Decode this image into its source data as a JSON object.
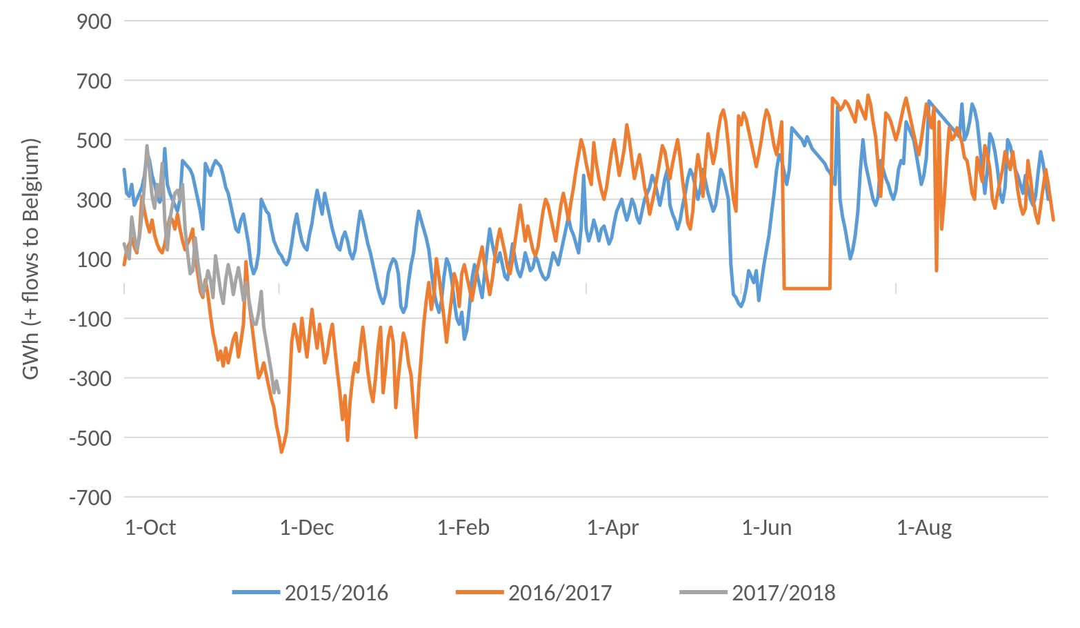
{
  "chart": {
    "type": "line",
    "background_color": "#ffffff",
    "grid_color": "#d9d9d9",
    "axis_color": "#d9d9d9",
    "text_color": "#595959",
    "label_fontsize": 34,
    "ytitle_fontsize": 34,
    "legend_fontsize": 34,
    "line_width": 5,
    "ylabel": "GWh (+ flows to Belgium)",
    "ylim": [
      -700,
      900
    ],
    "ytick_step": 200,
    "yticks": [
      -700,
      -500,
      -300,
      -100,
      100,
      300,
      500,
      700,
      900
    ],
    "xticks": [
      {
        "x": 0,
        "label": "1-Oct"
      },
      {
        "x": 61,
        "label": "1-Dec"
      },
      {
        "x": 123,
        "label": "1-Feb"
      },
      {
        "x": 182,
        "label": "1-Apr"
      },
      {
        "x": 243,
        "label": "1-Jun"
      },
      {
        "x": 304,
        "label": "1-Aug"
      }
    ],
    "x_count": 365,
    "legend": {
      "items": [
        {
          "label": "2015/2016",
          "color": "#5b9bd5"
        },
        {
          "label": "2016/2017",
          "color": "#ed7d31"
        },
        {
          "label": "2017/2018",
          "color": "#a5a5a5"
        }
      ]
    },
    "series": [
      {
        "name": "2015/2016",
        "color": "#5b9bd5",
        "values": [
          400,
          320,
          310,
          350,
          280,
          300,
          320,
          340,
          380,
          460,
          430,
          380,
          350,
          310,
          290,
          310,
          470,
          350,
          320,
          300,
          280,
          260,
          300,
          430,
          420,
          410,
          400,
          380,
          340,
          300,
          260,
          200,
          420,
          400,
          380,
          410,
          430,
          420,
          410,
          380,
          340,
          320,
          280,
          240,
          200,
          190,
          230,
          250,
          200,
          150,
          80,
          50,
          70,
          120,
          300,
          280,
          260,
          250,
          200,
          160,
          140,
          120,
          110,
          90,
          80,
          100,
          150,
          210,
          250,
          200,
          160,
          140,
          130,
          180,
          220,
          280,
          330,
          290,
          250,
          320,
          280,
          240,
          200,
          170,
          140,
          130,
          170,
          190,
          160,
          120,
          100,
          130,
          200,
          260,
          230,
          190,
          150,
          120,
          80,
          40,
          0,
          -30,
          -50,
          -20,
          50,
          80,
          100,
          90,
          50,
          -60,
          -80,
          -60,
          20,
          80,
          120,
          200,
          260,
          230,
          200,
          170,
          130,
          60,
          -10,
          -50,
          -80,
          -40,
          40,
          100,
          80,
          30,
          -40,
          -100,
          -120,
          -80,
          -170,
          -140,
          -60,
          30,
          80,
          50,
          10,
          -30,
          50,
          130,
          200,
          150,
          110,
          90,
          120,
          80,
          40,
          30,
          90,
          150,
          100,
          60,
          40,
          70,
          120,
          90,
          60,
          70,
          110,
          90,
          60,
          40,
          30,
          40,
          80,
          120,
          100,
          80,
          120,
          160,
          200,
          240,
          200,
          180,
          150,
          120,
          200,
          380,
          200,
          160,
          190,
          230,
          200,
          160,
          200,
          210,
          180,
          150,
          170,
          220,
          260,
          280,
          300,
          260,
          230,
          260,
          300,
          280,
          240,
          220,
          260,
          300,
          320,
          340,
          380,
          360,
          320,
          280,
          320,
          370,
          400,
          280,
          250,
          230,
          200,
          230,
          280,
          320,
          370,
          400,
          380,
          340,
          300,
          340,
          400,
          360,
          320,
          290,
          260,
          280,
          340,
          400,
          380,
          340,
          300,
          80,
          -20,
          -30,
          -50,
          -60,
          -40,
          0,
          60,
          40,
          20,
          60,
          -40,
          20,
          80,
          130,
          180,
          250,
          320,
          400,
          450,
          430,
          390,
          350,
          400,
          540,
          530,
          520,
          510,
          500,
          480,
          510,
          490,
          470,
          460,
          450,
          440,
          430,
          420,
          400,
          390,
          370,
          350,
          610,
          300,
          240,
          200,
          150,
          100,
          130,
          180,
          260,
          400,
          500,
          420,
          380,
          340,
          300,
          280,
          310,
          430,
          400,
          370,
          350,
          320,
          300,
          330,
          400,
          430,
          420,
          560,
          540,
          520,
          500,
          450,
          400,
          350,
          380,
          440,
          630,
          620,
          610,
          600,
          590,
          580,
          570,
          560,
          550,
          540,
          530,
          520,
          510,
          620,
          500,
          520,
          560,
          620,
          600,
          560,
          480,
          400,
          320,
          400,
          520,
          500,
          460,
          400,
          320,
          290,
          340,
          500,
          480,
          440,
          400,
          380,
          350,
          320,
          380,
          340,
          300,
          280,
          310,
          390,
          460,
          420,
          360,
          300
        ]
      },
      {
        "name": "2016/2017",
        "color": "#ed7d31",
        "values": [
          80,
          130,
          150,
          170,
          140,
          120,
          180,
          310,
          260,
          220,
          190,
          230,
          180,
          150,
          130,
          120,
          150,
          200,
          240,
          230,
          200,
          250,
          200,
          160,
          130,
          150,
          170,
          200,
          100,
          50,
          -10,
          -30,
          30,
          -20,
          -90,
          -150,
          -190,
          -240,
          -210,
          -260,
          -200,
          -250,
          -210,
          -170,
          -150,
          -230,
          -180,
          -120,
          90,
          -30,
          -100,
          -170,
          -240,
          -300,
          -280,
          -250,
          -290,
          -330,
          -370,
          -400,
          -460,
          -500,
          -550,
          -520,
          -480,
          -350,
          -180,
          -120,
          -160,
          -210,
          -100,
          -170,
          -230,
          -150,
          -70,
          -140,
          -200,
          -120,
          -180,
          -250,
          -220,
          -160,
          -120,
          -200,
          -280,
          -350,
          -440,
          -360,
          -510,
          -380,
          -300,
          -250,
          -280,
          -200,
          -130,
          -200,
          -280,
          -340,
          -380,
          -300,
          -200,
          -130,
          -350,
          -270,
          -170,
          -130,
          -180,
          -400,
          -300,
          -220,
          -150,
          -180,
          -250,
          -290,
          -400,
          -500,
          -340,
          -230,
          -120,
          -40,
          20,
          -70,
          -20,
          100,
          40,
          -30,
          -100,
          -180,
          -100,
          -30,
          50,
          20,
          -60,
          50,
          80,
          40,
          0,
          -40,
          10,
          60,
          100,
          140,
          80,
          30,
          -20,
          30,
          100,
          160,
          200,
          160,
          120,
          70,
          50,
          100,
          160,
          220,
          280,
          220,
          160,
          210,
          170,
          130,
          110,
          140,
          200,
          260,
          300,
          280,
          240,
          200,
          160,
          220,
          280,
          320,
          280,
          230,
          290,
          340,
          400,
          450,
          500,
          470,
          420,
          380,
          350,
          490,
          420,
          370,
          330,
          300,
          340,
          400,
          460,
          500,
          440,
          380,
          420,
          470,
          550,
          500,
          430,
          370,
          410,
          450,
          400,
          340,
          300,
          250,
          290,
          330,
          380,
          430,
          480,
          460,
          410,
          370,
          420,
          460,
          500,
          440,
          360,
          300,
          220,
          200,
          260,
          380,
          450,
          400,
          310,
          430,
          520,
          470,
          420,
          460,
          530,
          580,
          600,
          560,
          480,
          380,
          300,
          260,
          580,
          550,
          590,
          570,
          530,
          490,
          450,
          410,
          450,
          500,
          560,
          600,
          580,
          530,
          480,
          450,
          500,
          560,
          0,
          0,
          0,
          0,
          0,
          0,
          0,
          0,
          0,
          0,
          0,
          0,
          0,
          0,
          0,
          0,
          0,
          0,
          0,
          640,
          630,
          620,
          600,
          610,
          630,
          620,
          600,
          580,
          560,
          630,
          610,
          590,
          570,
          650,
          620,
          560,
          510,
          410,
          310,
          450,
          590,
          580,
          560,
          530,
          500,
          530,
          570,
          610,
          640,
          600,
          560,
          520,
          480,
          450,
          500,
          560,
          620,
          580,
          540,
          610,
          60,
          560,
          200,
          300,
          430,
          540,
          500,
          510,
          540,
          520,
          490,
          440,
          430,
          380,
          320,
          300,
          440,
          400,
          360,
          480,
          450,
          400,
          300,
          270,
          320,
          360,
          400,
          460,
          430,
          400,
          460,
          400,
          330,
          280,
          250,
          270,
          430,
          370,
          300,
          250,
          220,
          280,
          340,
          400,
          350,
          290,
          230
        ]
      },
      {
        "name": "2017/2018",
        "color": "#a5a5a5",
        "values": [
          150,
          120,
          100,
          240,
          180,
          130,
          170,
          250,
          350,
          480,
          400,
          310,
          270,
          350,
          310,
          420,
          230,
          130,
          230,
          280,
          320,
          330,
          300,
          350,
          200,
          120,
          50,
          60,
          170,
          90,
          30,
          -20,
          10,
          60,
          30,
          -30,
          110,
          50,
          -10,
          -50,
          30,
          80,
          40,
          -20,
          30,
          70,
          20,
          -40,
          20,
          -30,
          -80,
          -120,
          -120,
          -80,
          -10,
          -130,
          -180,
          -230,
          -280,
          -350,
          -310,
          -350
        ]
      }
    ]
  }
}
